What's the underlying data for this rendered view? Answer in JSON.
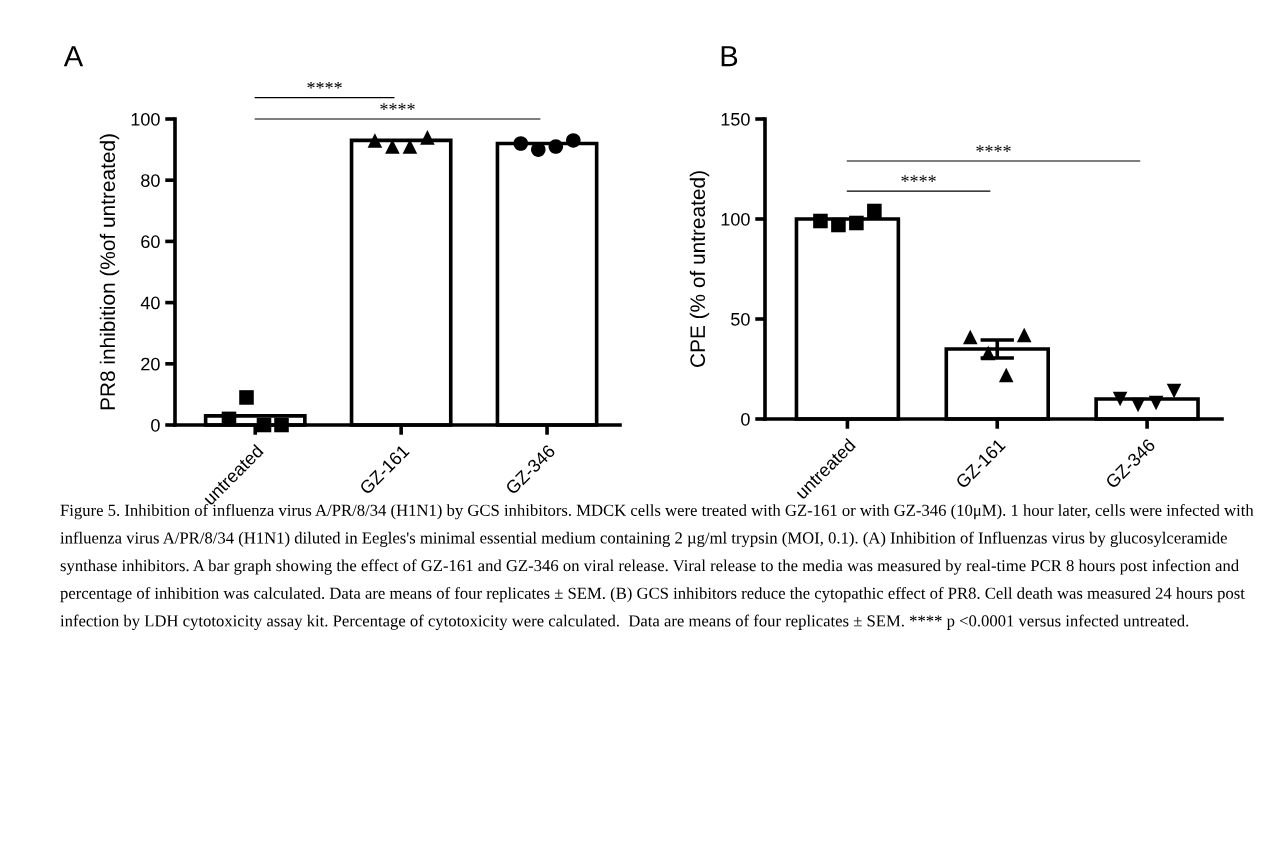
{
  "chart_data": [
    {
      "type": "bar",
      "title": "A",
      "ylabel": "PR8 inhibition (%of untreated)",
      "categories": [
        "untreated",
        "GZ-161",
        "GZ-346"
      ],
      "ylim": [
        0,
        100
      ],
      "yticks": [
        0,
        20,
        40,
        60,
        80,
        100
      ],
      "series": [
        {
          "color": "#ffffff",
          "values": [
            3,
            93,
            92
          ]
        },
        {
          "type": "scatter",
          "color": "#000000",
          "marker": "square",
          "x": [
            "untreated",
            "untreated",
            "untreated",
            "untreated"
          ],
          "values": [
            2,
            9,
            0,
            0
          ]
        },
        {
          "type": "scatter",
          "color": "#000000",
          "marker": "triangle",
          "x": [
            "GZ-161",
            "GZ-161",
            "GZ-161",
            "GZ-161"
          ],
          "values": [
            93,
            91,
            91,
            94
          ]
        },
        {
          "type": "scatter",
          "color": "#000000",
          "marker": "circle",
          "x": [
            "GZ-346",
            "GZ-346",
            "GZ-346",
            "GZ-346"
          ],
          "values": [
            92,
            90,
            91,
            93
          ]
        }
      ],
      "annotations": [
        "****",
        "****"
      ]
    },
    {
      "type": "bar",
      "title": "B",
      "ylabel": "CPE (% of untreated)",
      "categories": [
        "untreated",
        "GZ-161",
        "GZ-346"
      ],
      "ylim": [
        0,
        150
      ],
      "yticks": [
        0,
        50,
        100,
        150
      ],
      "series": [
        {
          "color": "#ffffff",
          "values": [
            100,
            35,
            10
          ],
          "errors": [
            null,
            4.5,
            null
          ]
        },
        {
          "type": "scatter",
          "color": "#000000",
          "marker": "square",
          "x": [
            "untreated",
            "untreated",
            "untreated",
            "untreated"
          ],
          "values": [
            99,
            97,
            98,
            104
          ]
        },
        {
          "type": "scatter",
          "color": "#000000",
          "marker": "triangle",
          "x": [
            "GZ-161",
            "GZ-161",
            "GZ-161",
            "GZ-161"
          ],
          "values": [
            41,
            33,
            22,
            42
          ]
        },
        {
          "type": "scatter",
          "color": "#000000",
          "marker": "triangle-down",
          "x": [
            "GZ-346",
            "GZ-346",
            "GZ-346",
            "GZ-346"
          ],
          "values": [
            10,
            7,
            8,
            14
          ]
        }
      ],
      "annotations": [
        "****",
        "****",
        "Figure 5. Inhibition of influenza virus A/PR/8/34 (H1N1) by GCS inhibitors. MDCK cells were treated with GZ-161 or with GZ-346 (10μM). 1 hour later, cells were infected with influenza virus A/PR/8/34 (H1N1) diluted in Eegles's minimal essential medium containing 2 µg/ml trypsin (MOI, 0.1). (A) Inhibition of Influenzas virus by glucosylceramide synthase inhibitors. A bar graph showing the effect of GZ-161 and GZ-346 on viral release. Viral release to the media was measured by real-time PCR 8 hours post infection and percentage of inhibition was calculated. Data are means of four replicates ± SEM. (B) GCS inhibitors reduce the cytopathic effect of PR8. Cell death was measured 24 hours post infection by LDH cytotoxicity assay kit. Percentage of cytotoxicity were calculated.  Data are means of four replicates ± SEM. **** p <0.0001 versus infected untreated."
      ]
    }
  ]
}
